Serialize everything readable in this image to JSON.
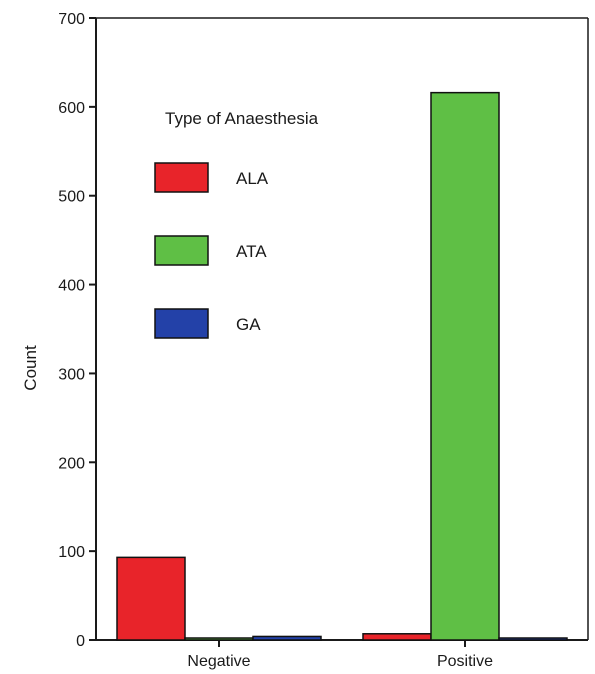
{
  "chart_data": {
    "type": "bar",
    "title": "",
    "xlabel": "",
    "ylabel": "Count",
    "ylim": [
      0,
      700
    ],
    "yticks": [
      0,
      100,
      200,
      300,
      400,
      500,
      600,
      700
    ],
    "categories": [
      "Negative",
      "Positive"
    ],
    "series": [
      {
        "name": "ALA",
        "color": "#e8242a",
        "values": [
          93,
          7
        ]
      },
      {
        "name": "ATA",
        "color": "#5fbf45",
        "values": [
          1,
          616
        ]
      },
      {
        "name": "GA",
        "color": "#2341a8",
        "values": [
          4,
          2
        ]
      }
    ],
    "legend": {
      "title": "Type of Anaesthesia",
      "placement": "top-left (inside plot)"
    },
    "grid": false
  }
}
